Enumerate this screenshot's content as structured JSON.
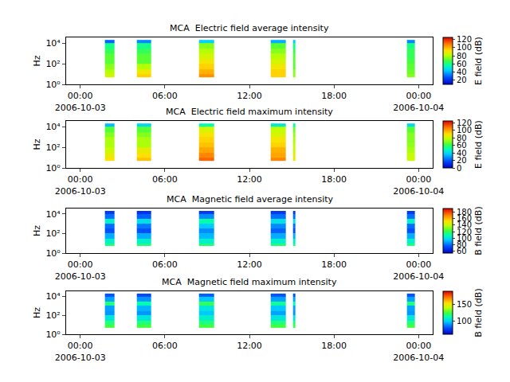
{
  "chart_data": [
    {
      "type": "heatmap",
      "title": "MCA  Electric field average intensity",
      "ylabel": "Hz",
      "log": "y",
      "x": [
        "2006-10-03 01:45",
        "2006-10-03 02:25",
        "2006-10-03 04:00",
        "2006-10-03 05:00",
        "2006-10-03 08:25",
        "2006-10-03 09:30",
        "2006-10-03 13:30",
        "2006-10-03 14:35",
        "2006-10-03 15:05",
        "2006-10-03 15:15",
        "2006-10-03 23:10",
        "2006-10-03 23:45"
      ],
      "xlim": [
        "2006-10-02 23:00",
        "2006-10-04 01:00"
      ],
      "xticks": [
        {
          "value": "2006-10-03 00:00",
          "label": "00:00\n2006-10-03"
        },
        {
          "value": "2006-10-03 06:00",
          "label": "06:00"
        },
        {
          "value": "2006-10-03 12:00",
          "label": "12:00"
        },
        {
          "value": "2006-10-03 18:00",
          "label": "18:00"
        },
        {
          "value": "2006-10-04 00:00",
          "label": "00:00\n2006-10-04"
        }
      ],
      "y": [
        5,
        10,
        30,
        100,
        300,
        1000,
        3000,
        10000,
        20000
      ],
      "ylim": [
        1,
        35000
      ],
      "yticks": [
        {
          "value": 1,
          "label": "10⁰"
        },
        {
          "value": 100,
          "label": "10²"
        },
        {
          "value": 10000,
          "label": "10⁴"
        }
      ],
      "z": [
        [
          85,
          null,
          95,
          null,
          105,
          null,
          95,
          null,
          75,
          null,
          75
        ],
        [
          80,
          null,
          90,
          null,
          100,
          null,
          95,
          null,
          75,
          null,
          72
        ],
        [
          75,
          null,
          80,
          null,
          95,
          null,
          90,
          null,
          70,
          null,
          70
        ],
        [
          70,
          null,
          70,
          null,
          90,
          null,
          85,
          null,
          70,
          null,
          68
        ],
        [
          70,
          null,
          70,
          null,
          85,
          null,
          80,
          null,
          70,
          null,
          65
        ],
        [
          65,
          null,
          65,
          null,
          80,
          null,
          75,
          null,
          65,
          null,
          65
        ],
        [
          60,
          null,
          60,
          null,
          75,
          null,
          70,
          null,
          60,
          null,
          60
        ],
        [
          30,
          null,
          35,
          null,
          45,
          null,
          40,
          null,
          45,
          null,
          35
        ]
      ],
      "zlim": [
        10,
        125
      ],
      "zticks": [
        20,
        40,
        60,
        80,
        100,
        120
      ],
      "colorbar_title": "E field (dB)"
    },
    {
      "type": "heatmap",
      "title": "MCA  Electric field maximum intensity",
      "ylabel": "Hz",
      "log": "y",
      "x": [
        "2006-10-03 01:45",
        "2006-10-03 02:25",
        "2006-10-03 04:00",
        "2006-10-03 05:00",
        "2006-10-03 08:25",
        "2006-10-03 09:30",
        "2006-10-03 13:30",
        "2006-10-03 14:35",
        "2006-10-03 15:05",
        "2006-10-03 15:15",
        "2006-10-03 23:10",
        "2006-10-03 23:45"
      ],
      "xlim": [
        "2006-10-02 23:00",
        "2006-10-04 01:00"
      ],
      "xticks": [
        {
          "value": "2006-10-03 00:00",
          "label": "00:00\n2006-10-03"
        },
        {
          "value": "2006-10-03 06:00",
          "label": "06:00"
        },
        {
          "value": "2006-10-03 12:00",
          "label": "12:00"
        },
        {
          "value": "2006-10-03 18:00",
          "label": "18:00"
        },
        {
          "value": "2006-10-04 00:00",
          "label": "00:00\n2006-10-04"
        }
      ],
      "y": [
        5,
        10,
        30,
        100,
        300,
        1000,
        3000,
        10000,
        20000
      ],
      "ylim": [
        1,
        35000
      ],
      "yticks": [
        {
          "value": 1,
          "label": "10⁰"
        },
        {
          "value": 100,
          "label": "10²"
        },
        {
          "value": 10000,
          "label": "10⁴"
        }
      ],
      "z": [
        [
          90,
          null,
          95,
          null,
          110,
          null,
          105,
          null,
          85,
          null,
          80
        ],
        [
          85,
          null,
          90,
          null,
          105,
          null,
          100,
          null,
          85,
          null,
          78
        ],
        [
          80,
          null,
          85,
          null,
          100,
          null,
          98,
          null,
          80,
          null,
          75
        ],
        [
          75,
          null,
          75,
          null,
          95,
          null,
          92,
          null,
          78,
          null,
          72
        ],
        [
          75,
          null,
          75,
          null,
          92,
          null,
          88,
          null,
          75,
          null,
          70
        ],
        [
          70,
          null,
          70,
          null,
          88,
          null,
          82,
          null,
          72,
          null,
          70
        ],
        [
          65,
          null,
          65,
          null,
          82,
          null,
          78,
          null,
          68,
          null,
          65
        ],
        [
          35,
          null,
          40,
          null,
          50,
          null,
          45,
          null,
          50,
          null,
          40
        ]
      ],
      "zlim": [
        0,
        125
      ],
      "zticks": [
        0,
        20,
        40,
        60,
        80,
        100,
        120
      ],
      "colorbar_title": "E field (dB)"
    },
    {
      "type": "heatmap",
      "title": "MCA  Magnetic field average intensity",
      "ylabel": "Hz",
      "log": "y",
      "x": [
        "2006-10-03 01:45",
        "2006-10-03 02:25",
        "2006-10-03 04:00",
        "2006-10-03 05:00",
        "2006-10-03 08:25",
        "2006-10-03 09:30",
        "2006-10-03 13:30",
        "2006-10-03 14:35",
        "2006-10-03 15:05",
        "2006-10-03 15:15",
        "2006-10-03 23:10",
        "2006-10-03 23:45"
      ],
      "xlim": [
        "2006-10-02 23:00",
        "2006-10-04 01:00"
      ],
      "xticks": [
        {
          "value": "2006-10-03 00:00",
          "label": "00:00\n2006-10-03"
        },
        {
          "value": "2006-10-03 06:00",
          "label": "06:00"
        },
        {
          "value": "2006-10-03 12:00",
          "label": "12:00"
        },
        {
          "value": "2006-10-03 18:00",
          "label": "18:00"
        },
        {
          "value": "2006-10-04 00:00",
          "label": "00:00\n2006-10-04"
        }
      ],
      "y": [
        5,
        10,
        30,
        100,
        300,
        1000,
        3000,
        10000,
        20000
      ],
      "ylim": [
        1,
        35000
      ],
      "yticks": [
        {
          "value": 1,
          "label": "10⁰"
        },
        {
          "value": 100,
          "label": "10²"
        },
        {
          "value": 10000,
          "label": "10⁴"
        }
      ],
      "z": [
        [
          115,
          null,
          115,
          null,
          115,
          null,
          115,
          null,
          115,
          null,
          115
        ],
        [
          105,
          null,
          105,
          null,
          105,
          null,
          105,
          null,
          105,
          null,
          105
        ],
        [
          90,
          null,
          90,
          null,
          92,
          null,
          90,
          null,
          90,
          null,
          90
        ],
        [
          75,
          null,
          75,
          null,
          85,
          null,
          78,
          null,
          75,
          null,
          75
        ],
        [
          80,
          null,
          82,
          null,
          95,
          null,
          85,
          null,
          80,
          null,
          80
        ],
        [
          105,
          null,
          100,
          null,
          110,
          null,
          100,
          null,
          100,
          null,
          105
        ],
        [
          80,
          null,
          78,
          null,
          85,
          null,
          80,
          null,
          80,
          null,
          80
        ],
        [
          70,
          null,
          68,
          null,
          70,
          null,
          70,
          null,
          70,
          null,
          70
        ]
      ],
      "zlim": [
        55,
        190
      ],
      "zticks": [
        60,
        80,
        100,
        120,
        140,
        160,
        180
      ],
      "colorbar_title": "B field (dB)"
    },
    {
      "type": "heatmap",
      "title": "MCA  Magnetic field maximum intensity",
      "ylabel": "Hz",
      "log": "y",
      "x": [
        "2006-10-03 01:45",
        "2006-10-03 02:25",
        "2006-10-03 04:00",
        "2006-10-03 05:00",
        "2006-10-03 08:25",
        "2006-10-03 09:30",
        "2006-10-03 13:30",
        "2006-10-03 14:35",
        "2006-10-03 15:05",
        "2006-10-03 15:15",
        "2006-10-03 23:10",
        "2006-10-03 23:45"
      ],
      "xlim": [
        "2006-10-02 23:00",
        "2006-10-04 01:00"
      ],
      "xticks": [
        {
          "value": "2006-10-03 00:00",
          "label": "00:00\n2006-10-03"
        },
        {
          "value": "2006-10-03 06:00",
          "label": "06:00"
        },
        {
          "value": "2006-10-03 12:00",
          "label": "12:00"
        },
        {
          "value": "2006-10-03 18:00",
          "label": "18:00"
        },
        {
          "value": "2006-10-04 00:00",
          "label": "00:00\n2006-10-04"
        }
      ],
      "y": [
        5,
        10,
        30,
        100,
        300,
        1000,
        3000,
        10000,
        20000
      ],
      "ylim": [
        1,
        35000
      ],
      "yticks": [
        {
          "value": 1,
          "label": "10⁰"
        },
        {
          "value": 100,
          "label": "10²"
        },
        {
          "value": 10000,
          "label": "10⁴"
        }
      ],
      "z": [
        [
          125,
          null,
          125,
          null,
          125,
          null,
          125,
          null,
          125,
          null,
          125
        ],
        [
          118,
          null,
          118,
          null,
          118,
          null,
          118,
          null,
          118,
          null,
          118
        ],
        [
          105,
          null,
          105,
          null,
          108,
          null,
          105,
          null,
          105,
          null,
          105
        ],
        [
          90,
          null,
          90,
          null,
          98,
          null,
          92,
          null,
          90,
          null,
          90
        ],
        [
          92,
          null,
          95,
          null,
          105,
          null,
          98,
          null,
          92,
          null,
          92
        ],
        [
          118,
          null,
          112,
          null,
          122,
          null,
          115,
          null,
          112,
          null,
          118
        ],
        [
          92,
          null,
          90,
          null,
          98,
          null,
          92,
          null,
          92,
          null,
          92
        ],
        [
          80,
          null,
          78,
          null,
          82,
          null,
          80,
          null,
          80,
          null,
          80
        ]
      ],
      "zlim": [
        60,
        190
      ],
      "zticks": [
        100,
        150
      ],
      "colorbar_title": "B field (dB)"
    }
  ]
}
